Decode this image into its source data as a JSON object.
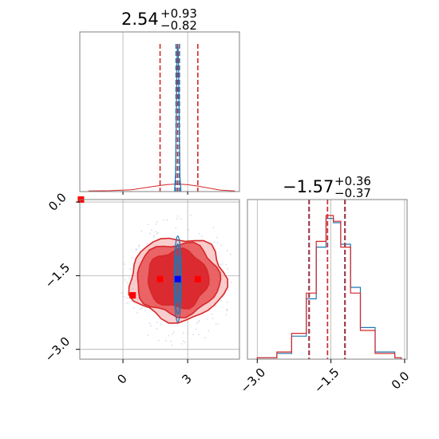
{
  "chart_data": {
    "type": "corner",
    "colors": {
      "blue": "#1f77b4",
      "red": "#d62728",
      "red_fill_light": "#f4a3a4",
      "red_fill_mid": "#e8585a",
      "red_fill_dark": "#d9252b",
      "marker_red": "#ff0000",
      "marker_blue": "#0000ff",
      "grid": "#b0b0b0",
      "frame": "#808080"
    },
    "params": [
      {
        "median": 2.54,
        "plus": "+0.93",
        "minus": "−0.82",
        "title_main": "2.54",
        "lims": [
          -2.0,
          5.4
        ],
        "ticks": [
          0,
          3
        ],
        "tick_labels": [
          "0",
          "3"
        ],
        "red_lines": [
          1.72,
          2.54,
          3.47
        ],
        "blue_lines": [
          2.46,
          2.54,
          2.62
        ]
      },
      {
        "median": -1.57,
        "plus": "+0.36",
        "minus": "−0.37",
        "title_main": "−1.57",
        "lims": [
          -3.2,
          0.05
        ],
        "ticks": [
          -3.0,
          -1.5,
          0.0
        ],
        "tick_labels": [
          "−3.0",
          "−1.5",
          "0.0"
        ],
        "red_lines": [
          -1.94,
          -1.57,
          -1.21
        ],
        "blue_lines": [
          -1.95,
          -1.57,
          -1.22
        ]
      }
    ],
    "hist_x_blue": {
      "x": [
        2.4,
        2.44,
        2.47,
        2.5,
        2.52,
        2.54,
        2.56,
        2.58,
        2.61,
        2.64,
        2.68
      ],
      "h": [
        0.02,
        0.12,
        0.45,
        0.85,
        0.98,
        1.0,
        0.96,
        0.82,
        0.42,
        0.1,
        0.02
      ]
    },
    "hist_x_red": {
      "x": [
        -1.6,
        -0.6,
        0.4,
        1.0,
        1.5,
        2.0,
        2.5,
        3.0,
        3.5,
        4.0,
        4.5,
        5.2
      ],
      "h": [
        0.004,
        0.006,
        0.012,
        0.025,
        0.035,
        0.045,
        0.05,
        0.045,
        0.035,
        0.022,
        0.01,
        0.004
      ]
    },
    "hist_y_blue": {
      "x": [
        -3.0,
        -2.6,
        -2.3,
        -2.0,
        -1.8,
        -1.6,
        -1.45,
        -1.3,
        -1.1,
        -0.9,
        -0.6,
        -0.2
      ],
      "h": [
        0.01,
        0.04,
        0.16,
        0.42,
        0.78,
        0.98,
        0.95,
        0.8,
        0.5,
        0.22,
        0.05,
        0.01
      ]
    },
    "hist_y_red": {
      "x": [
        -3.0,
        -2.6,
        -2.3,
        -2.0,
        -1.8,
        -1.6,
        -1.45,
        -1.3,
        -1.1,
        -0.9,
        -0.6,
        -0.2
      ],
      "h": [
        0.01,
        0.05,
        0.18,
        0.46,
        0.82,
        1.0,
        0.96,
        0.78,
        0.46,
        0.2,
        0.04,
        0.01
      ]
    },
    "scatter_red_points": [
      {
        "x": -1.95,
        "y": 0.05
      },
      {
        "x": 0.45,
        "y": -1.9
      },
      {
        "x": 1.72,
        "y": -1.57
      },
      {
        "x": 3.47,
        "y": -1.57
      }
    ],
    "scatter_blue_point": {
      "x": 2.54,
      "y": -1.57
    },
    "contour_red": {
      "cx": 2.54,
      "cy": -1.57,
      "levels": [
        [
          1.0,
          0.82,
          0.92
        ],
        [
          1.0,
          1.08,
          1.2
        ],
        [
          1.0,
          1.3,
          1.48
        ]
      ]
    },
    "contour_blue": {
      "cx": 2.54,
      "cy": -1.57,
      "sx": 0.13,
      "sy": 0.92
    }
  }
}
